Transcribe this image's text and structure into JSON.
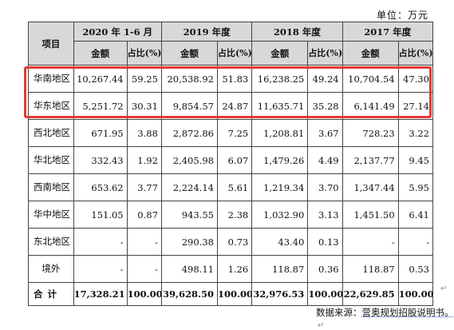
{
  "unit_label": "单位：万元",
  "header": {
    "item": "项目",
    "periods": [
      "2020 年 1-6 月",
      "2019 年度",
      "2018 年度",
      "2017 年度"
    ],
    "amount": "金额",
    "share": "占比(%)"
  },
  "rows": [
    {
      "region": "华南地区",
      "values": [
        "10,267.44",
        "59.25",
        "20,538.92",
        "51.83",
        "16,238.25",
        "49.24",
        "10,704.54",
        "47.30"
      ]
    },
    {
      "region": "华东地区",
      "values": [
        "5,251.72",
        "30.31",
        "9,854.57",
        "24.87",
        "11,635.71",
        "35.28",
        "6,141.49",
        "27.14"
      ]
    },
    {
      "region": "西北地区",
      "values": [
        "671.95",
        "3.88",
        "2,872.86",
        "7.25",
        "1,208.81",
        "3.67",
        "728.23",
        "3.22"
      ]
    },
    {
      "region": "华北地区",
      "values": [
        "332.43",
        "1.92",
        "2,405.98",
        "6.07",
        "1,479.26",
        "4.49",
        "2,137.77",
        "9.45"
      ]
    },
    {
      "region": "西南地区",
      "values": [
        "653.62",
        "3.77",
        "2,224.14",
        "5.61",
        "1,219.34",
        "3.70",
        "1,347.44",
        "5.95"
      ]
    },
    {
      "region": "华中地区",
      "values": [
        "151.05",
        "0.87",
        "943.55",
        "2.38",
        "1,032.90",
        "3.13",
        "1,451.50",
        "6.41"
      ]
    },
    {
      "region": "东北地区",
      "values": [
        "-",
        "-",
        "290.38",
        "0.73",
        "43.40",
        "0.13",
        "-",
        "-"
      ]
    },
    {
      "region": "境外",
      "values": [
        "-",
        "-",
        "498.11",
        "1.26",
        "118.87",
        "0.36",
        "118.87",
        "0.53"
      ]
    }
  ],
  "total": {
    "label": "合计",
    "values": [
      "17,328.21",
      "100.00",
      "39,628.50",
      "100.00",
      "32,976.53",
      "100.00",
      "22,629.85",
      "100.00"
    ]
  },
  "source": {
    "prefix": "数据来源：",
    "body": "营奥规划招股说明书。"
  },
  "paragraph_mark": "↵",
  "highlight_color": "#e53935"
}
